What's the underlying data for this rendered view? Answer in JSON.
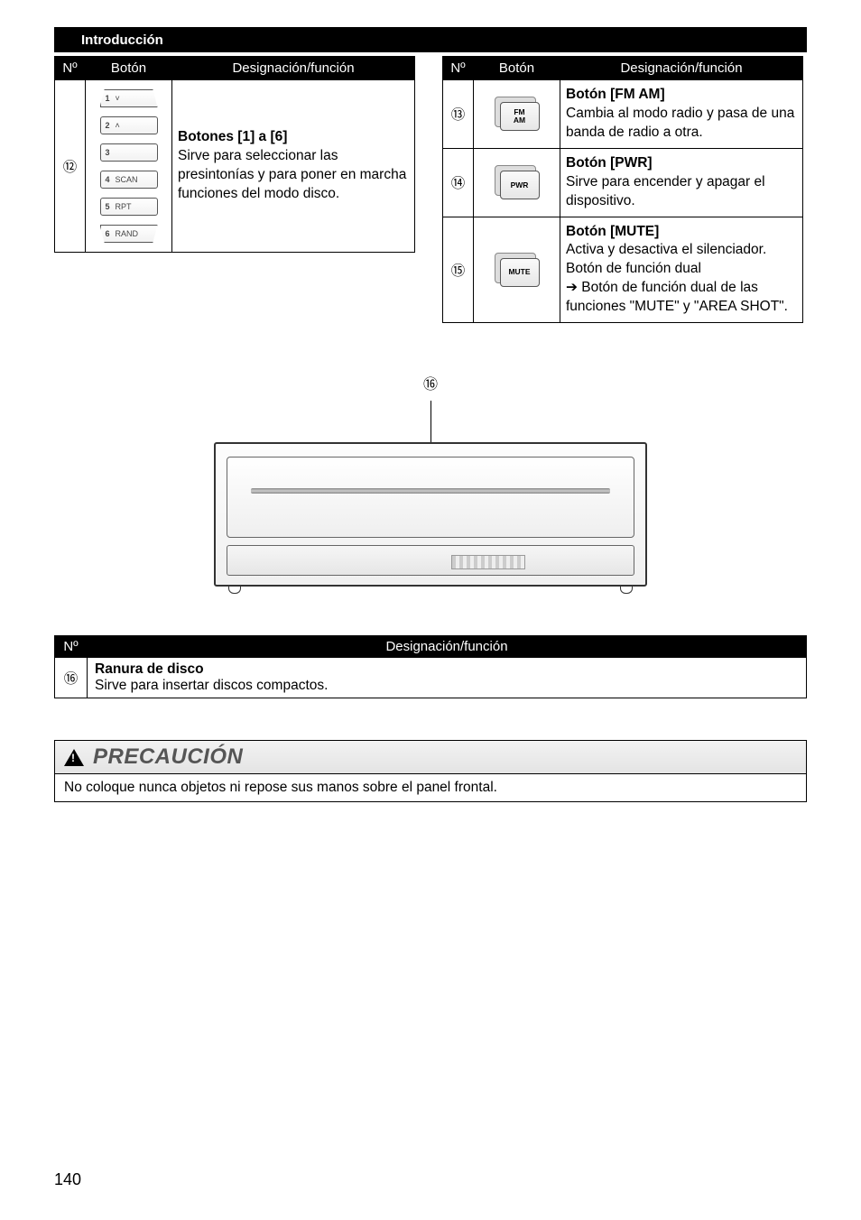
{
  "header": {
    "section": "Introducción"
  },
  "table_left": {
    "columns": [
      "Nº",
      "Botón",
      "Designación/función"
    ],
    "row": {
      "num": "⑫",
      "buttons": [
        {
          "n": "1",
          "label": "˅",
          "shape": "trap-top"
        },
        {
          "n": "2",
          "label": "˄",
          "shape": "rect"
        },
        {
          "n": "3",
          "label": "",
          "shape": "rect"
        },
        {
          "n": "4",
          "label": "SCAN",
          "shape": "rect"
        },
        {
          "n": "5",
          "label": "RPT",
          "shape": "rect"
        },
        {
          "n": "6",
          "label": "RAND",
          "shape": "trap-bot"
        }
      ],
      "desc_title": "Botones [1] a [6]",
      "desc_body": "Sirve para seleccionar las presintonías y para poner en marcha funciones del modo disco."
    }
  },
  "table_right": {
    "columns": [
      "Nº",
      "Botón",
      "Designación/función"
    ],
    "rows": [
      {
        "num": "⑬",
        "btn_label": "FM\nAM",
        "desc_title": "Botón [FM AM]",
        "desc_body": "Cambia al modo radio y pasa de una banda de radio a otra."
      },
      {
        "num": "⑭",
        "btn_label": "PWR",
        "desc_title": "Botón [PWR]",
        "desc_body": "Sirve para encender y apagar el dispositivo."
      },
      {
        "num": "⑮",
        "btn_label": "MUTE",
        "desc_title": "Botón [MUTE]",
        "desc_lines": [
          "Activa y desactiva el silenciador.",
          "Botón de función dual",
          "➔ Botón de función dual de las funciones \"MUTE\" y \"AREA SHOT\"."
        ]
      }
    ]
  },
  "device": {
    "callout_num": "⑯"
  },
  "table_full": {
    "columns": [
      "Nº",
      "Designación/función"
    ],
    "row": {
      "num": "⑯",
      "title": "Ranura de disco",
      "body": "Sirve para insertar discos compactos."
    }
  },
  "caution": {
    "word": "PRECAUCIÓN",
    "body": "No coloque nunca objetos ni repose sus manos sobre el panel frontal."
  },
  "page_number": "140"
}
